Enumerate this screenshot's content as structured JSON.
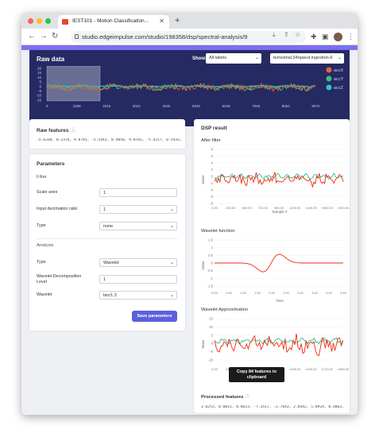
{
  "browser": {
    "tab_title": "IEST101 - Motion Classification...",
    "url": "studio.edgeimpulse.com/studio/198358/dsp/spectral-analysis/9",
    "new_tab": "+"
  },
  "raw_data": {
    "title": "Raw data",
    "show_label": "Show:",
    "show_value": "All labels",
    "sample_value": "terrestrial.34rqaeut.ingestion-6",
    "y_ticks": [
      "20",
      "15",
      "10",
      "5",
      "0",
      "-5",
      "-10",
      "-15"
    ],
    "x_ticks": [
      "0",
      "1008",
      "2016",
      "3024",
      "4032",
      "5040",
      "6048",
      "7056",
      "8064",
      "9072"
    ],
    "legend": [
      "accX",
      "accY",
      "accZ"
    ],
    "colors": {
      "accX": "#e8643c",
      "accY": "#3dbf7f",
      "accZ": "#2ec4c4"
    }
  },
  "raw_features": {
    "title": "Raw features",
    "values": "-5.6330, 0.2376, 9.8781, -5.5442, 0.4050, 9.8781, -5.4217, 0.5433, ..."
  },
  "parameters": {
    "title": "Parameters",
    "filter_heading": "Filter",
    "scale_label": "Scale axes",
    "scale_value": "1",
    "decimation_label": "Input decimation ratio",
    "decimation_value": "1",
    "type_label": "Type",
    "type_value": "none",
    "analysis_heading": "Analysis",
    "analysis_type_label": "Type",
    "analysis_type_value": "Wavelet",
    "decomp_label_1": "Wavelet Decomposition",
    "decomp_label_2": "Level",
    "decomp_value": "1",
    "wavelet_label": "Wavelet",
    "wavelet_value": "bior1.3",
    "save_label": "Save parameters"
  },
  "dsp": {
    "title": "DSP result",
    "after_filter": "After filter",
    "wavelet_function": "Wavelet function",
    "wavelet_approx": "Wavelet Approximation",
    "processed_title": "Processed features",
    "processed_values": "3.6253, 0.8015, 0.8613, -7.3517, -2.7643, 2.8442, 5.8924, 0.4863, ...",
    "tooltip_line1": "Copy 84 features to",
    "tooltip_line2": "clipboard",
    "value_axis": "Value",
    "af_xlabel": "Sample #",
    "time_label": "Time",
    "af_yticks": [
      "8",
      "6",
      "4",
      "2",
      "0",
      "-2",
      "-4",
      "-6",
      "-8"
    ],
    "af_xticks": [
      "0.00",
      "240.00",
      "480.00",
      "720.00",
      "960.00",
      "1200.00",
      "1440.00",
      "1680.00",
      "1920.00"
    ],
    "wf_yticks": [
      "1.5",
      "1",
      "0.5",
      "0",
      "-0.5",
      "-1",
      "-1.5"
    ],
    "wf_xticks": [
      "0.00",
      "0.50",
      "1.00",
      "1.50",
      "2.00",
      "2.50",
      "3.00",
      "3.50",
      "4.00",
      "4.50"
    ],
    "wa_yticks": [
      "15",
      "10",
      "5",
      "0",
      "-5",
      "-10"
    ],
    "wa_xticks": [
      "0.00",
      "246.00",
      "492.00",
      "738.00",
      "984.00",
      "1230.00",
      "1476.00",
      "1723.00",
      "1969.00"
    ]
  }
}
